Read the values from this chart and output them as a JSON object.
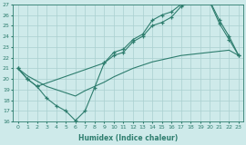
{
  "xlabel": "Humidex (Indice chaleur)",
  "bg_color": "#ceeaea",
  "line_color": "#2e7d6e",
  "grid_color": "#aacfcf",
  "xlim": [
    -0.5,
    23.5
  ],
  "ylim": [
    16,
    27
  ],
  "xticks": [
    0,
    1,
    2,
    3,
    4,
    5,
    6,
    7,
    8,
    9,
    10,
    11,
    12,
    13,
    14,
    15,
    16,
    17,
    18,
    19,
    20,
    21,
    22,
    23
  ],
  "yticks": [
    16,
    17,
    18,
    19,
    20,
    21,
    22,
    23,
    24,
    25,
    26,
    27
  ],
  "line1_x": [
    0,
    1,
    2,
    3,
    4,
    5,
    6,
    7,
    8,
    9,
    10,
    11,
    12,
    13,
    14,
    15,
    16,
    17,
    18,
    19,
    20,
    21,
    22,
    23
  ],
  "line1_y": [
    21.0,
    20.0,
    19.3,
    18.2,
    17.5,
    17.0,
    16.1,
    17.0,
    19.2,
    21.5,
    22.2,
    22.5,
    23.5,
    24.0,
    25.0,
    25.3,
    25.8,
    26.8,
    27.2,
    27.3,
    27.2,
    25.2,
    23.7,
    22.2
  ],
  "line2_x": [
    0,
    1,
    2,
    9,
    10,
    11,
    12,
    13,
    14,
    15,
    16,
    17,
    18,
    19,
    20,
    21,
    22,
    23
  ],
  "line2_y": [
    21.0,
    20.0,
    19.3,
    21.5,
    22.5,
    22.8,
    23.7,
    24.2,
    25.5,
    26.0,
    26.3,
    27.0,
    27.3,
    27.5,
    27.3,
    25.5,
    24.0,
    22.2
  ],
  "line3_x": [
    0,
    1,
    2,
    3,
    4,
    5,
    6,
    7,
    8,
    9,
    10,
    11,
    12,
    13,
    14,
    15,
    16,
    17,
    18,
    19,
    20,
    21,
    22,
    23
  ],
  "line3_y": [
    21.0,
    20.3,
    19.8,
    19.3,
    19.0,
    18.7,
    18.4,
    18.9,
    19.3,
    19.7,
    20.2,
    20.6,
    21.0,
    21.3,
    21.6,
    21.8,
    22.0,
    22.2,
    22.3,
    22.4,
    22.5,
    22.6,
    22.7,
    22.2
  ]
}
